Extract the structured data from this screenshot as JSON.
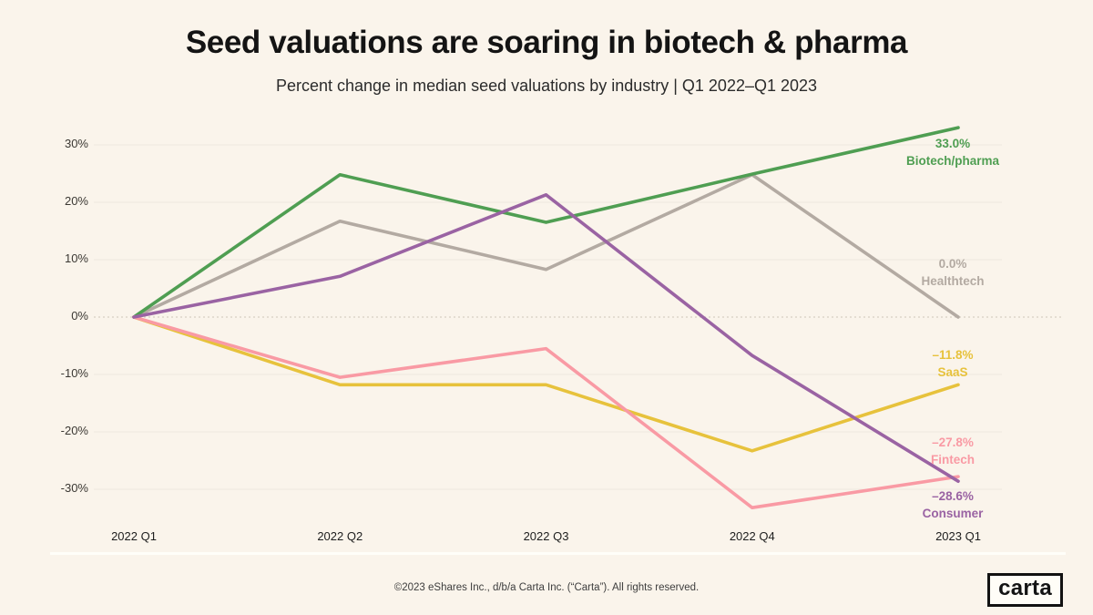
{
  "page": {
    "footer": "©2023 eShares Inc., d/b/a Carta Inc. (“Carta”). All rights reserved.",
    "logo_text": "carta",
    "background_color": "#faf4eb"
  },
  "chart_data": {
    "type": "line",
    "title": "Seed valuations are soaring in biotech & pharma",
    "subtitle": "Percent change in median seed valuations by industry | Q1 2022–Q1 2023",
    "categories": [
      "2022 Q1",
      "2022 Q2",
      "2022 Q3",
      "2022 Q4",
      "2023 Q1"
    ],
    "ylabel": "Percent change",
    "ylim": [
      -35,
      35
    ],
    "grid": "horizontal faint lines every 10%, zero line dotted",
    "legend_position": "end-of-line labels at right",
    "yticks": [
      {
        "label": "30%",
        "value": 30
      },
      {
        "label": "20%",
        "value": 20
      },
      {
        "label": "10%",
        "value": 10
      },
      {
        "label": "0%",
        "value": 0
      },
      {
        "label": "-10%",
        "value": -10
      },
      {
        "label": "-20%",
        "value": -20
      },
      {
        "label": "-30%",
        "value": -30
      }
    ],
    "series": [
      {
        "name": "Healthtech",
        "color": "#b3aaa2",
        "values": [
          0,
          16.7,
          8.3,
          24.8,
          0.0
        ],
        "end_label": "0.0%",
        "label_dy": -67
      },
      {
        "name": "Biotech/pharma",
        "color": "#4f9e52",
        "values": [
          0,
          24.8,
          16.5,
          24.9,
          33.0
        ],
        "end_label": "33.0%",
        "label_dy": 9
      },
      {
        "name": "SaaS",
        "color": "#e7c23c",
        "values": [
          0,
          -11.8,
          -11.8,
          -23.3,
          -11.8
        ],
        "end_label": "–11.8%",
        "label_dy": -41
      },
      {
        "name": "Fintech",
        "color": "#f99aa4",
        "values": [
          0,
          -10.5,
          -5.5,
          -33.2,
          -27.8
        ],
        "end_label": "–27.8%",
        "label_dy": -46
      },
      {
        "name": "Consumer",
        "color": "#9a63a3",
        "values": [
          0,
          7.1,
          21.3,
          -6.7,
          -28.6
        ],
        "end_label": "–28.6%",
        "label_dy": 8
      }
    ]
  }
}
